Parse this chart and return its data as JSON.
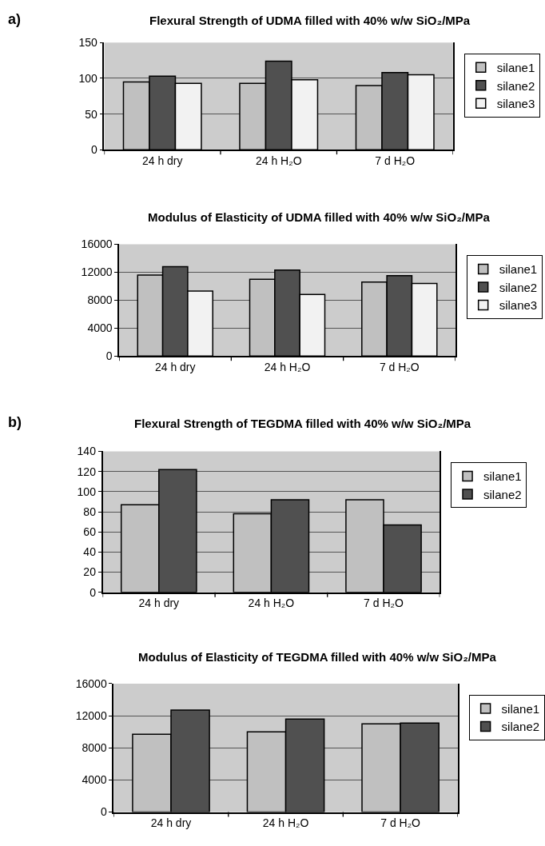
{
  "chart_data": [
    {
      "type": "bar",
      "title": "Flexural Strength of UDMA filled with 40% w/w SiO₂/MPa",
      "annotations": [
        "a)"
      ],
      "categories": [
        "24 h dry",
        "24 h H₂O",
        "7 d H₂O"
      ],
      "series": [
        {
          "name": "silane1",
          "color": "#c0c0c0",
          "values": [
            95,
            93,
            90
          ]
        },
        {
          "name": "silane2",
          "color": "#505050",
          "values": [
            103,
            124,
            108
          ]
        },
        {
          "name": "silane3",
          "color": "#f2f2f2",
          "values": [
            93,
            98,
            105
          ]
        }
      ],
      "ylim": [
        0,
        150
      ],
      "yticks": [
        0,
        50,
        100,
        150
      ],
      "grid": "y",
      "legend": "right"
    },
    {
      "type": "bar",
      "title": "Modulus of Elasticity of UDMA filled with 40% w/w SiO₂/MPa",
      "categories": [
        "24 h dry",
        "24 h H₂O",
        "7 d H₂O"
      ],
      "series": [
        {
          "name": "silane1",
          "color": "#c0c0c0",
          "values": [
            11600,
            11000,
            10600
          ]
        },
        {
          "name": "silane2",
          "color": "#505050",
          "values": [
            12800,
            12300,
            11500
          ]
        },
        {
          "name": "silane3",
          "color": "#f2f2f2",
          "values": [
            9300,
            8800,
            10400
          ]
        }
      ],
      "ylim": [
        0,
        16000
      ],
      "yticks": [
        0,
        4000,
        8000,
        12000,
        16000
      ],
      "grid": "y",
      "legend": "right"
    },
    {
      "type": "bar",
      "title": "Flexural Strength of TEGDMA filled with 40% w/w SiO₂/MPa",
      "annotations": [
        "b)"
      ],
      "categories": [
        "24 h dry",
        "24 h H₂O",
        "7 d H₂O"
      ],
      "series": [
        {
          "name": "silane1",
          "color": "#c0c0c0",
          "values": [
            87,
            78,
            92
          ]
        },
        {
          "name": "silane2",
          "color": "#505050",
          "values": [
            122,
            92,
            67
          ]
        }
      ],
      "ylim": [
        0,
        140
      ],
      "yticks": [
        0,
        20,
        40,
        60,
        80,
        100,
        120,
        140
      ],
      "grid": "y",
      "legend": "right"
    },
    {
      "type": "bar",
      "title": "Modulus of Elasticity of TEGDMA filled with 40% w/w SiO₂/MPa",
      "categories": [
        "24 h dry",
        "24 h H₂O",
        "7 d H₂O"
      ],
      "series": [
        {
          "name": "silane1",
          "color": "#c0c0c0",
          "values": [
            9700,
            10000,
            11000
          ]
        },
        {
          "name": "silane2",
          "color": "#505050",
          "values": [
            12700,
            11600,
            11100
          ]
        }
      ],
      "ylim": [
        0,
        16000
      ],
      "yticks": [
        0,
        4000,
        8000,
        12000,
        16000
      ],
      "grid": "y",
      "legend": "right"
    }
  ]
}
